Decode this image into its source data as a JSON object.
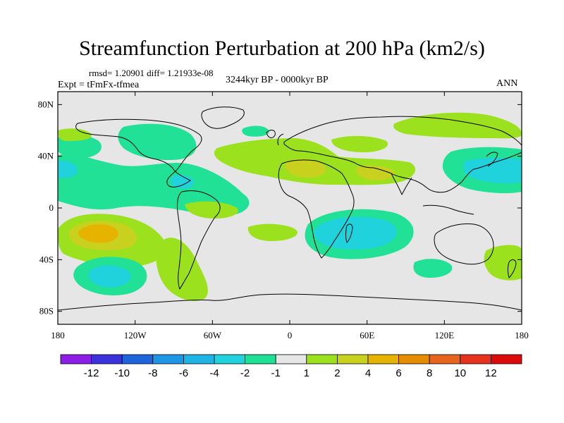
{
  "title": "Streamfunction Perturbation at 200 hPa (km2/s)",
  "stats": "rmsd= 1.20901 diff= 1.21933e-08",
  "expt": "Expt = tFmFx-tfmea",
  "period": "3244kyr BP - 0000kyr BP",
  "season": "ANN",
  "chart_data": {
    "type": "heatmap",
    "title": "Streamfunction Perturbation at 200 hPa (km2/s)",
    "projection": "cylindrical-equidistant",
    "xlim": [
      -180,
      180
    ],
    "ylim": [
      -90,
      90
    ],
    "x_ticks": [
      {
        "value": -180,
        "label": "180"
      },
      {
        "value": -120,
        "label": "120W"
      },
      {
        "value": -60,
        "label": "60W"
      },
      {
        "value": 0,
        "label": "0"
      },
      {
        "value": 60,
        "label": "60E"
      },
      {
        "value": 120,
        "label": "120E"
      },
      {
        "value": 180,
        "label": "180"
      }
    ],
    "y_ticks": [
      {
        "value": 80,
        "label": "80N"
      },
      {
        "value": 40,
        "label": "40N"
      },
      {
        "value": 0,
        "label": "0"
      },
      {
        "value": -40,
        "label": "40S"
      },
      {
        "value": -80,
        "label": "80S"
      }
    ],
    "colorbar": {
      "labels": [
        "-12",
        "-10",
        "-8",
        "-6",
        "-4",
        "-2",
        "-1",
        "1",
        "2",
        "4",
        "6",
        "8",
        "10",
        "12"
      ],
      "colors": [
        "#8c1ee6",
        "#3c32dc",
        "#1e64dc",
        "#1e96e6",
        "#1eb4e6",
        "#20d2dc",
        "#1ee196",
        "#e6e6e6",
        "#9be11e",
        "#c8d21e",
        "#e6b400",
        "#e68c00",
        "#e6641e",
        "#e6321e",
        "#dc0a0a"
      ]
    },
    "regions": [
      {
        "name": "Tropical-subtropical Pacific and Atlantic negative band",
        "class": "-2 to -1",
        "lon": [
          -180,
          30
        ],
        "lat": [
          -10,
          50
        ]
      },
      {
        "name": "Central Pacific positive cell",
        "class": "4 to 6",
        "lon": [
          -175,
          -115
        ],
        "lat": [
          -40,
          -5
        ]
      },
      {
        "name": "South Pacific negative cell",
        "class": "-4 to -2",
        "lon": [
          -160,
          -110
        ],
        "lat": [
          -60,
          -40
        ]
      },
      {
        "name": "Indian Ocean negative cell",
        "class": "-4 to -2",
        "lon": [
          20,
          80
        ],
        "lat": [
          -40,
          -5
        ]
      },
      {
        "name": "North Africa positive band",
        "class": "2 to 4",
        "lon": [
          0,
          80
        ],
        "lat": [
          20,
          50
        ]
      },
      {
        "name": "North Pacific negative cell",
        "class": "-4 to -2",
        "lon": [
          140,
          180
        ],
        "lat": [
          15,
          50
        ]
      },
      {
        "name": "Eurasian high-latitude positive band",
        "class": "1 to 2",
        "lon": [
          20,
          160
        ],
        "lat": [
          55,
          75
        ]
      },
      {
        "name": "South American positive band",
        "class": "1 to 2",
        "lon": [
          -110,
          -60
        ],
        "lat": [
          -65,
          -20
        ]
      }
    ]
  }
}
